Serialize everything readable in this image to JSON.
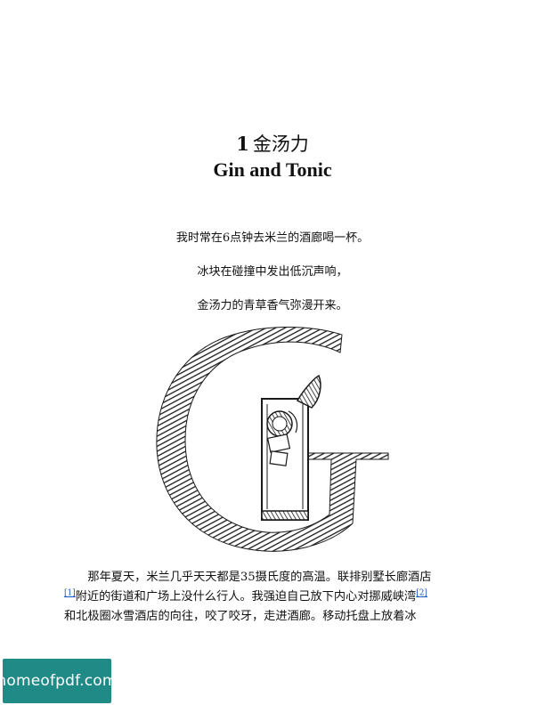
{
  "chapter": {
    "number": "1",
    "title_cn": "金汤力",
    "title_en": "Gin and Tonic"
  },
  "epigraph": [
    "我时常在6点钟去米兰的酒廊喝一杯。",
    "冰块在碰撞中发出低沉声响，",
    "金汤力的青草香气弥漫开来。"
  ],
  "illustration": {
    "icon": "gin-glass-letter-g-icon",
    "ink_color": "#1a1a1a"
  },
  "body": {
    "seg1": "那年夏天，米兰几乎天天都是35摄氏度的高温。联排别墅长廊酒店",
    "fn1": "[1]",
    "seg2": "附近的街道和广场上没什么行人。我强迫自己放下内心对挪威峡湾",
    "fn2": "[2]",
    "seg3": "和北极圈冰雪酒店的向往，咬了咬牙，走进酒廊。移动托盘上放着冰"
  },
  "watermark": {
    "text": "homeofpdf.com",
    "color": "#1f8a86"
  },
  "colors": {
    "link": "#1a56c4",
    "text": "#111111"
  }
}
